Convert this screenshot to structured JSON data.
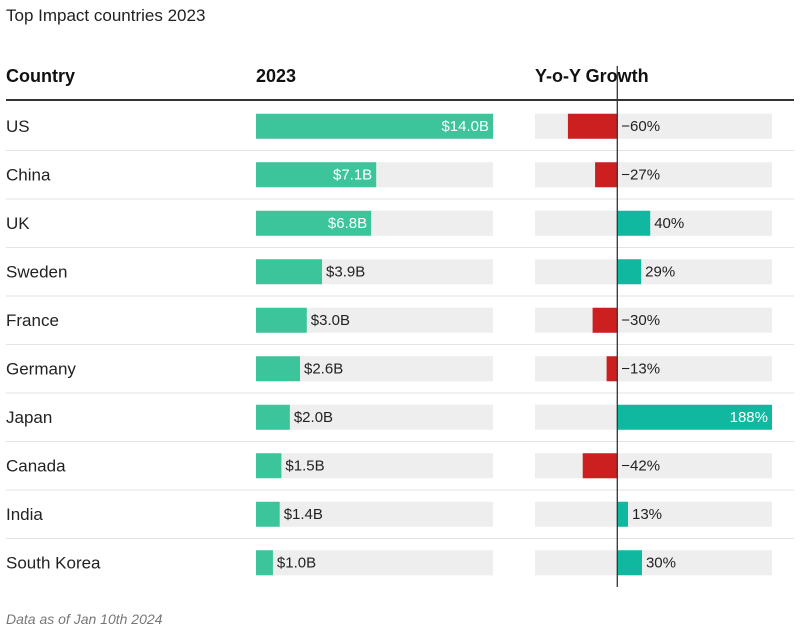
{
  "title": "Top Impact countries 2023",
  "headers": {
    "country": "Country",
    "value": "2023",
    "growth": "Y-o-Y Growth"
  },
  "footnote": "Data as of Jan 10th 2024",
  "colors": {
    "value_bar": "#3cc49a",
    "growth_pos": "#11b8a0",
    "growth_neg": "#cc1f1f",
    "track": "#eeeeee",
    "axis": "#333333"
  },
  "chart_data": {
    "type": "table",
    "title": "Top Impact countries 2023",
    "columns": [
      "Country",
      "2023",
      "Y-o-Y Growth"
    ],
    "value_unit": "$B",
    "value_max": 14.0,
    "growth_range": [
      -100,
      188
    ],
    "rows": [
      {
        "country": "US",
        "value": 14.0,
        "value_label": "$14.0B",
        "growth": -60,
        "growth_label": "−60%"
      },
      {
        "country": "China",
        "value": 7.1,
        "value_label": "$7.1B",
        "growth": -27,
        "growth_label": "−27%"
      },
      {
        "country": "UK",
        "value": 6.8,
        "value_label": "$6.8B",
        "growth": 40,
        "growth_label": "40%"
      },
      {
        "country": "Sweden",
        "value": 3.9,
        "value_label": "$3.9B",
        "growth": 29,
        "growth_label": "29%"
      },
      {
        "country": "France",
        "value": 3.0,
        "value_label": "$3.0B",
        "growth": -30,
        "growth_label": "−30%"
      },
      {
        "country": "Germany",
        "value": 2.6,
        "value_label": "$2.6B",
        "growth": -13,
        "growth_label": "−13%"
      },
      {
        "country": "Japan",
        "value": 2.0,
        "value_label": "$2.0B",
        "growth": 188,
        "growth_label": "188%"
      },
      {
        "country": "Canada",
        "value": 1.5,
        "value_label": "$1.5B",
        "growth": -42,
        "growth_label": "−42%"
      },
      {
        "country": "India",
        "value": 1.4,
        "value_label": "$1.4B",
        "growth": 13,
        "growth_label": "13%"
      },
      {
        "country": "South Korea",
        "value": 1.0,
        "value_label": "$1.0B",
        "growth": 30,
        "growth_label": "30%"
      }
    ]
  }
}
